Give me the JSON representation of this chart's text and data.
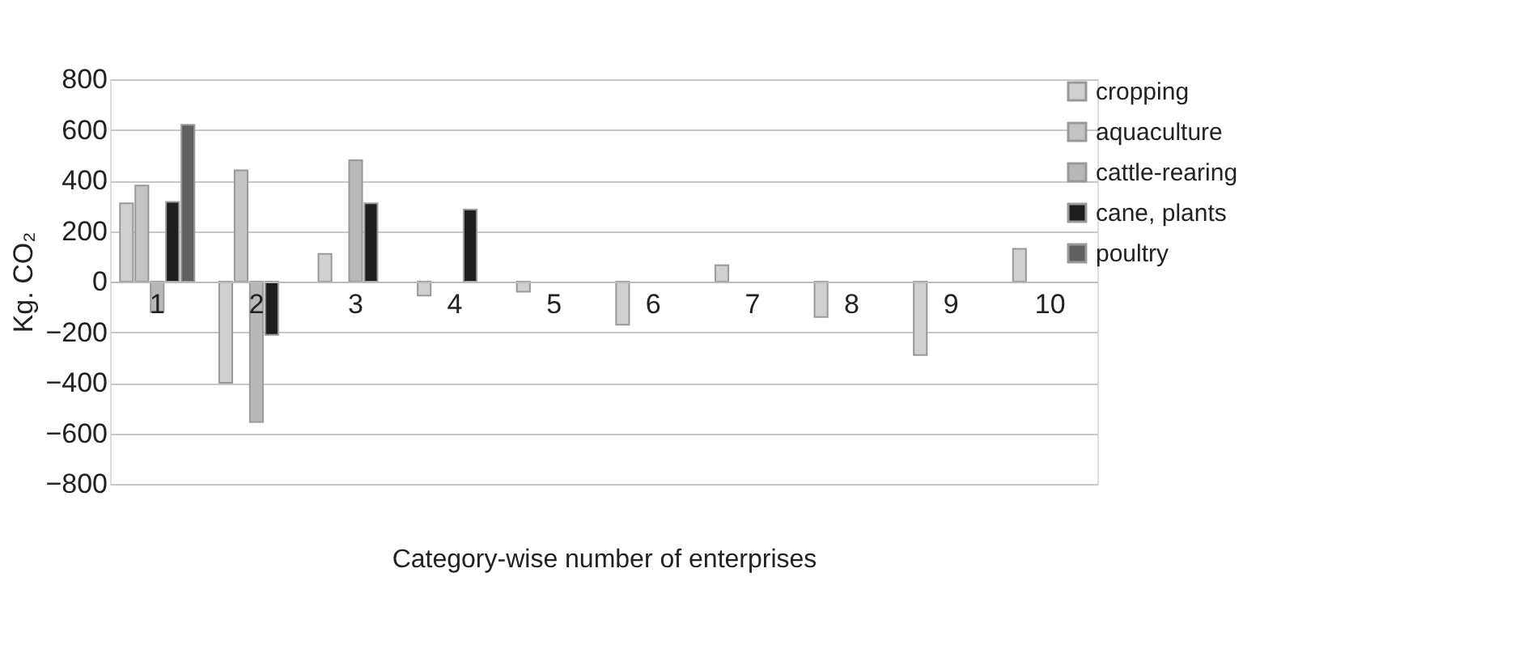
{
  "chart_data": {
    "type": "bar",
    "xlabel": "Category-wise number of enterprises",
    "ylabel": "Kg. CO₂",
    "categories": [
      "1",
      "2",
      "3",
      "4",
      "5",
      "6",
      "7",
      "8",
      "9",
      "10"
    ],
    "series": [
      {
        "name": "cropping",
        "color": "#d0d0d0",
        "values": [
          310,
          -400,
          110,
          -55,
          -40,
          -170,
          65,
          -140,
          -290,
          130
        ]
      },
      {
        "name": "aquaculture",
        "color": "#c4c4c4",
        "values": [
          380,
          440,
          null,
          null,
          null,
          null,
          null,
          null,
          null,
          null
        ]
      },
      {
        "name": "cattle-rearing",
        "color": "#b8b8b8",
        "values": [
          -120,
          -555,
          480,
          null,
          null,
          null,
          null,
          null,
          null,
          null
        ]
      },
      {
        "name": "cane, plants",
        "color": "#1e1e1e",
        "values": [
          315,
          -210,
          310,
          285,
          null,
          null,
          null,
          null,
          null,
          null
        ]
      },
      {
        "name": "poultry",
        "color": "#606060",
        "values": [
          620,
          null,
          null,
          null,
          null,
          null,
          null,
          null,
          null,
          null
        ]
      }
    ],
    "ylim": [
      -800,
      800
    ],
    "yticks": [
      -800,
      -600,
      -400,
      -200,
      0,
      200,
      400,
      600,
      800
    ],
    "grid": "y",
    "legend": "top right"
  }
}
